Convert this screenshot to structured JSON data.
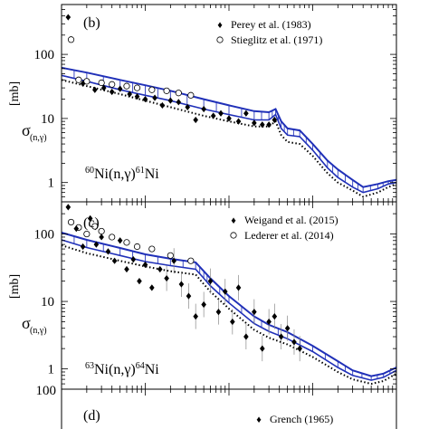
{
  "chart_data": [
    {
      "type": "line",
      "panel_label": "(b)",
      "reaction": {
        "pre": "60",
        "elem": "Ni(n,",
        "gamma": "γ",
        "mid": ")",
        "post_mass": "61",
        "post_elem": "Ni"
      },
      "ylabel": {
        "main": "σ",
        "sub": "(n,γ)",
        "unit": "[mb]"
      },
      "yscale": "log",
      "ylim": [
        0.5,
        600
      ],
      "yticks": [
        "1",
        "10",
        "100"
      ],
      "xscale": "log",
      "xlim": [
        0.001,
        10
      ],
      "legend_position": "top-right",
      "legend": [
        {
          "marker": "filled-diamond",
          "label": "Perey et al. (1983)"
        },
        {
          "marker": "open-circle",
          "label": "Stieglitz et al. (1971)"
        }
      ],
      "series": [
        {
          "style": "blue-solid-upper",
          "x": [
            0.001,
            0.002,
            0.005,
            0.01,
            0.02,
            0.05,
            0.1,
            0.2,
            0.3,
            0.36,
            0.42,
            0.5,
            0.7,
            1,
            1.5,
            2,
            3,
            4,
            6,
            8,
            10
          ],
          "y": [
            62,
            52,
            40,
            33,
            27,
            20,
            16,
            13,
            12.5,
            14,
            9,
            7,
            6.5,
            4,
            2.2,
            1.6,
            1.1,
            0.85,
            0.95,
            1.05,
            1.1
          ]
        },
        {
          "style": "blue-solid-lower",
          "x": [
            0.001,
            0.002,
            0.005,
            0.01,
            0.02,
            0.05,
            0.1,
            0.2,
            0.3,
            0.36,
            0.42,
            0.5,
            0.7,
            1,
            1.5,
            2,
            3,
            4,
            6,
            8,
            10
          ],
          "y": [
            47,
            38,
            28,
            23,
            19,
            14,
            11.5,
            9.5,
            9.5,
            11.5,
            7,
            5.5,
            5.2,
            3.2,
            1.7,
            1.2,
            0.85,
            0.7,
            0.8,
            0.95,
            1.0
          ]
        },
        {
          "style": "black-dotted",
          "x": [
            0.001,
            0.002,
            0.005,
            0.01,
            0.02,
            0.05,
            0.1,
            0.2,
            0.3,
            0.36,
            0.42,
            0.5,
            0.7,
            1,
            1.5,
            2,
            3,
            4,
            6,
            8,
            10
          ],
          "y": [
            40,
            32,
            24,
            19,
            15,
            11,
            9,
            7.5,
            7.5,
            9,
            5.5,
            4.3,
            4,
            2.6,
            1.4,
            1.0,
            0.75,
            0.6,
            0.7,
            0.85,
            0.95
          ]
        }
      ],
      "points": [
        {
          "series": "Perey et al. (1983)",
          "x": [
            0.0012,
            0.0018,
            0.0025,
            0.0032,
            0.004,
            0.005,
            0.0065,
            0.008,
            0.01,
            0.013,
            0.016,
            0.02,
            0.025,
            0.032,
            0.04,
            0.05,
            0.065,
            0.08,
            0.1,
            0.13,
            0.16,
            0.2,
            0.25,
            0.3,
            0.35
          ],
          "y": [
            380,
            35,
            28,
            30,
            26,
            29,
            24,
            22,
            20,
            21,
            16,
            19,
            18,
            15,
            9.5,
            14,
            11,
            12,
            10,
            9,
            12,
            8.5,
            8,
            8,
            9.5
          ]
        },
        {
          "series": "Stieglitz et al. (1971)",
          "x": [
            0.0013,
            0.0016,
            0.002,
            0.003,
            0.004,
            0.006,
            0.008,
            0.012,
            0.018,
            0.025,
            0.035
          ],
          "y": [
            170,
            40,
            38,
            36,
            34,
            32,
            30,
            28,
            27,
            25,
            23
          ]
        }
      ]
    },
    {
      "type": "line",
      "panel_label": "(c)",
      "reaction": {
        "pre": "63",
        "elem": "Ni(n,",
        "gamma": "γ",
        "mid": ")",
        "post_mass": "64",
        "post_elem": "Ni"
      },
      "ylabel": {
        "main": "σ",
        "sub": "(n,γ)",
        "unit": "[mb]"
      },
      "yscale": "log",
      "ylim": [
        0.5,
        300
      ],
      "yticks": [
        "1",
        "10",
        "100"
      ],
      "xscale": "log",
      "xlim": [
        0.001,
        10
      ],
      "legend_position": "top-right",
      "legend": [
        {
          "marker": "filled-diamond",
          "label": "Weigand et al. (2015)"
        },
        {
          "marker": "open-circle",
          "label": "Lederer et al. (2014)"
        }
      ],
      "series": [
        {
          "style": "blue-solid-upper",
          "x": [
            0.001,
            0.002,
            0.005,
            0.01,
            0.02,
            0.04,
            0.05,
            0.06,
            0.1,
            0.2,
            0.3,
            0.5,
            1,
            2,
            3,
            5,
            7,
            10
          ],
          "y": [
            105,
            82,
            62,
            50,
            43,
            38,
            28,
            22,
            12,
            6,
            4.5,
            3.5,
            2.2,
            1.3,
            0.95,
            0.78,
            0.85,
            1.05
          ]
        },
        {
          "style": "blue-solid-lower",
          "x": [
            0.001,
            0.002,
            0.005,
            0.01,
            0.02,
            0.04,
            0.05,
            0.06,
            0.1,
            0.2,
            0.3,
            0.5,
            1,
            2,
            3,
            5,
            7,
            10
          ],
          "y": [
            82,
            63,
            48,
            39,
            34,
            30,
            22,
            17,
            9.5,
            4.7,
            3.6,
            2.8,
            1.8,
            1.05,
            0.8,
            0.68,
            0.75,
            0.95
          ]
        },
        {
          "style": "black-dotted",
          "x": [
            0.001,
            0.002,
            0.005,
            0.01,
            0.02,
            0.04,
            0.05,
            0.06,
            0.1,
            0.2,
            0.3,
            0.5,
            1,
            2,
            3,
            5,
            7,
            10
          ],
          "y": [
            68,
            52,
            40,
            33,
            28,
            25,
            18,
            14,
            7.8,
            3.8,
            2.9,
            2.3,
            1.5,
            0.9,
            0.7,
            0.6,
            0.66,
            0.85
          ]
        }
      ],
      "points": [
        {
          "series": "Weigand et al. (2015)",
          "x": [
            0.0012,
            0.0015,
            0.0018,
            0.0022,
            0.0026,
            0.003,
            0.0036,
            0.0043,
            0.005,
            0.006,
            0.0072,
            0.0085,
            0.01,
            0.012,
            0.015,
            0.018,
            0.022,
            0.027,
            0.033,
            0.04,
            0.05,
            0.06,
            0.075,
            0.09,
            0.11,
            0.13,
            0.16,
            0.2,
            0.25,
            0.3,
            0.35,
            0.42,
            0.5,
            0.6,
            0.7
          ],
          "y": [
            250,
            120,
            65,
            170,
            70,
            90,
            55,
            40,
            80,
            30,
            42,
            20,
            35,
            16,
            30,
            22,
            40,
            18,
            12,
            6,
            9,
            20,
            7,
            14,
            5,
            16,
            3,
            7,
            2,
            5,
            6,
            3,
            4,
            2.5,
            2
          ]
        },
        {
          "series": "Lederer et al. (2014)",
          "x": [
            0.0013,
            0.0016,
            0.002,
            0.0025,
            0.003,
            0.004,
            0.006,
            0.008,
            0.012,
            0.02,
            0.035
          ],
          "y": [
            150,
            125,
            100,
            130,
            110,
            90,
            75,
            65,
            60,
            48,
            40
          ]
        }
      ]
    },
    {
      "type": "line",
      "panel_label": "(d)",
      "ylabel": {
        "tick": "100"
      },
      "legend_position": "bottom-right",
      "legend": [
        {
          "marker": "filled-diamond",
          "label": "Grench (1965)"
        }
      ]
    }
  ],
  "colors": {
    "model": "#2030b8",
    "model_fill": "#2030b8",
    "data": "#000000",
    "axis": "#000000"
  }
}
